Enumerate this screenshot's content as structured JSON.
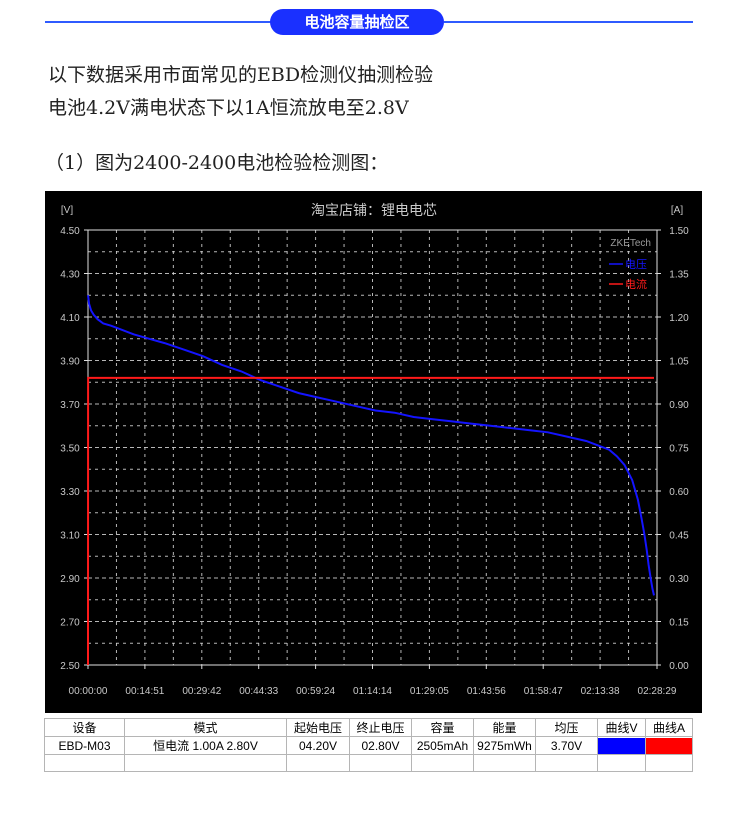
{
  "header": {
    "title": "电池容量抽检区"
  },
  "intro": {
    "line1": "以下数据采用市面常见的EBD检测仪抽测检验",
    "line2": "电池4.2V满电状态下以1A恒流放电至2.8V"
  },
  "caption": "（1）图为2400-2400电池检验检测图：",
  "chart_data": {
    "type": "line",
    "title": "淘宝店铺：锂电电芯",
    "watermark": "ZKETech",
    "left_axis_unit": "[V]",
    "right_axis_unit": "[A]",
    "ylim_left": [
      2.5,
      4.5
    ],
    "ylim_right": [
      0.0,
      1.5
    ],
    "yticks_left": [
      "4.50",
      "4.30",
      "4.10",
      "3.90",
      "3.70",
      "3.50",
      "3.30",
      "3.10",
      "2.90",
      "2.70",
      "2.50"
    ],
    "yticks_right": [
      "1.50",
      "1.35",
      "1.20",
      "1.05",
      "0.90",
      "0.75",
      "0.60",
      "0.45",
      "0.30",
      "0.15",
      "0.00"
    ],
    "xticks": [
      "00:00:00",
      "00:14:51",
      "00:29:42",
      "00:44:33",
      "00:59:24",
      "01:14:14",
      "01:29:05",
      "01:43:56",
      "01:58:47",
      "02:13:38",
      "02:28:29"
    ],
    "xlim_minutes": [
      0,
      148.48
    ],
    "grid": true,
    "legend_position": "top-right",
    "colors": {
      "voltage": "#1414ff",
      "current": "#ff1a1a",
      "background": "#000000",
      "grid": "#d8d8d8"
    },
    "series": [
      {
        "name": "电压",
        "axis": "left",
        "x_minutes": [
          0,
          0.3,
          0.8,
          1.5,
          2.5,
          4,
          6,
          9,
          12,
          16,
          20,
          25,
          30,
          35,
          40,
          45,
          50,
          55,
          60,
          65,
          70,
          75,
          80,
          85,
          90,
          95,
          100,
          105,
          110,
          115,
          120,
          125,
          130,
          133,
          136,
          138,
          140,
          142,
          143.5,
          144.5,
          145.2,
          145.8,
          146.3,
          146.8,
          147.3,
          147.7
        ],
        "values": [
          4.2,
          4.16,
          4.13,
          4.11,
          4.09,
          4.07,
          4.06,
          4.04,
          4.02,
          4.0,
          3.98,
          3.95,
          3.92,
          3.88,
          3.85,
          3.81,
          3.78,
          3.75,
          3.73,
          3.71,
          3.69,
          3.67,
          3.66,
          3.64,
          3.63,
          3.62,
          3.61,
          3.6,
          3.59,
          3.58,
          3.57,
          3.55,
          3.53,
          3.51,
          3.49,
          3.46,
          3.42,
          3.35,
          3.26,
          3.17,
          3.1,
          3.03,
          2.96,
          2.9,
          2.85,
          2.82
        ]
      },
      {
        "name": "电流",
        "axis": "right",
        "x_minutes": [
          0,
          0.02,
          147.7
        ],
        "values": [
          0.0,
          0.99,
          0.99
        ]
      }
    ]
  },
  "table": {
    "headers": [
      "设备",
      "模式",
      "起始电压",
      "终止电压",
      "容量",
      "能量",
      "均压",
      "曲线V",
      "曲线A"
    ],
    "row": [
      "EBD-M03",
      "恒电流 1.00A 2.80V",
      "04.20V",
      "02.80V",
      "2505mAh",
      "9275mWh",
      "3.70V"
    ],
    "curve_colors": [
      "#0000ff",
      "#ff0000"
    ]
  }
}
